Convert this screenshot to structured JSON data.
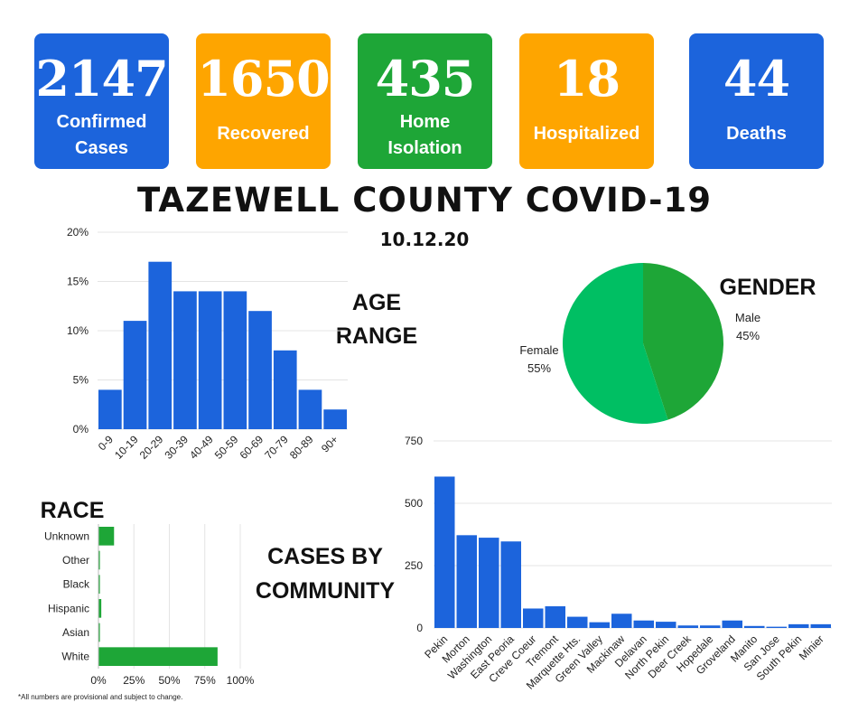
{
  "stats": [
    {
      "value": "2147",
      "label1": "Confirmed",
      "label2": "Cases",
      "color": "#1c64dc"
    },
    {
      "value": "1650",
      "label1": "Recovered",
      "label2": "",
      "color": "#fea500"
    },
    {
      "value": "435",
      "label1": "Home",
      "label2": "Isolation",
      "color": "#1ea637"
    },
    {
      "value": "18",
      "label1": "Hospitalized",
      "label2": "",
      "color": "#fea500"
    },
    {
      "value": "44",
      "label1": "Deaths",
      "label2": "",
      "color": "#1c64dc"
    }
  ],
  "title": "TAZEWELL COUNTY COVID-19",
  "date": "10.12.20",
  "headings": {
    "age": [
      "AGE",
      "RANGE"
    ],
    "gender": "GENDER",
    "race": "RACE",
    "community": [
      "CASES BY",
      "COMMUNITY"
    ]
  },
  "footnote": "*All  numbers are provisional  and subject to change.",
  "chart_data": [
    {
      "type": "bar",
      "name": "age",
      "categories": [
        "0-9",
        "10-19",
        "20-29",
        "30-39",
        "40-49",
        "50-59",
        "60-69",
        "70-79",
        "80-89",
        "90+"
      ],
      "values": [
        4,
        11,
        17,
        14,
        14,
        14,
        12,
        8,
        4,
        2
      ],
      "ylim": [
        0,
        20
      ],
      "yticks": [
        "0%",
        "5%",
        "10%",
        "15%",
        "20%"
      ],
      "color": "#1c64dc",
      "grid": true
    },
    {
      "type": "pie",
      "name": "gender",
      "labels": [
        "Male",
        "Female"
      ],
      "values": [
        45,
        55
      ],
      "value_labels": [
        "45%",
        "55%"
      ],
      "colors": [
        "#1ea637",
        "#00bf63"
      ]
    },
    {
      "type": "bar",
      "orientation": "horizontal",
      "name": "race",
      "categories": [
        "Unknown",
        "Other",
        "Black",
        "Hispanic",
        "Asian",
        "White"
      ],
      "values": [
        11,
        1,
        1,
        2,
        1,
        84
      ],
      "xlim": [
        0,
        100
      ],
      "xticks": [
        "0%",
        "25%",
        "50%",
        "75%",
        "100%"
      ],
      "color": "#1ea637",
      "grid": true
    },
    {
      "type": "bar",
      "name": "community",
      "categories": [
        "Pekin",
        "Morton",
        "Washington",
        "East Peoria",
        "Creve Coeur",
        "Tremont",
        "Marquette Hts.",
        "Green Valley",
        "Mackinaw",
        "Delavan",
        "North Pekin",
        "Deer Creek",
        "Hopedale",
        "Groveland",
        "Manito",
        "San Jose",
        "South Pekin",
        "Minier"
      ],
      "values": [
        607,
        372,
        362,
        347,
        78,
        87,
        45,
        23,
        57,
        30,
        25,
        10,
        10,
        30,
        8,
        5,
        15,
        15
      ],
      "ylim": [
        0,
        750
      ],
      "yticks": [
        "0",
        "250",
        "500",
        "750"
      ],
      "color": "#1c64dc",
      "grid": true
    }
  ]
}
